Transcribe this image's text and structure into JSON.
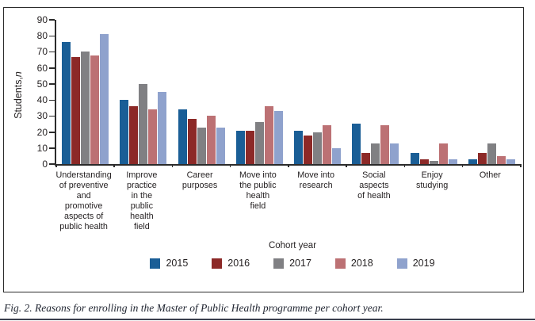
{
  "figure": {
    "caption": "Fig. 2. Reasons for enrolling in the Master of Public Health programme per cohort year."
  },
  "chart_data": {
    "type": "bar",
    "title": "",
    "xlabel": "",
    "ylabel": "Students, n",
    "ylabel_prefix": "Students, ",
    "ylabel_italic": "n",
    "ylim": [
      0,
      90
    ],
    "yticks": [
      0,
      10,
      20,
      30,
      40,
      50,
      60,
      70,
      80,
      90
    ],
    "grid": false,
    "legend_title": "Cohort year",
    "legend_position": "bottom",
    "categories": [
      "Understanding\nof preventive\nand\npromotive\naspects of\npublic health",
      "Improve\npractice\nin the\npublic\nhealth\nfield",
      "Career\npurposes",
      "Move into\nthe public\nhealth\nfield",
      "Move into\nresearch",
      "Social\naspects\nof health",
      "Enjoy\nstudying",
      "Other"
    ],
    "series": [
      {
        "name": "2015",
        "color": "#1A5E96",
        "values": [
          76,
          40,
          34,
          21,
          21,
          25,
          7,
          3
        ]
      },
      {
        "name": "2016",
        "color": "#8C2927",
        "values": [
          67,
          36,
          28,
          21,
          18,
          7,
          3,
          7
        ]
      },
      {
        "name": "2017",
        "color": "#808083",
        "values": [
          70,
          50,
          23,
          26,
          20,
          13,
          2,
          13
        ]
      },
      {
        "name": "2018",
        "color": "#BC7174",
        "values": [
          68,
          34,
          30,
          36,
          24,
          24,
          13,
          5
        ]
      },
      {
        "name": "2019",
        "color": "#8FA2CD",
        "values": [
          81,
          45,
          23,
          33,
          10,
          13,
          3,
          3
        ]
      }
    ]
  },
  "colors": {
    "axis": "#2b2b2b",
    "frame_border": "#2b2b2b",
    "caption_text": "#222733"
  }
}
